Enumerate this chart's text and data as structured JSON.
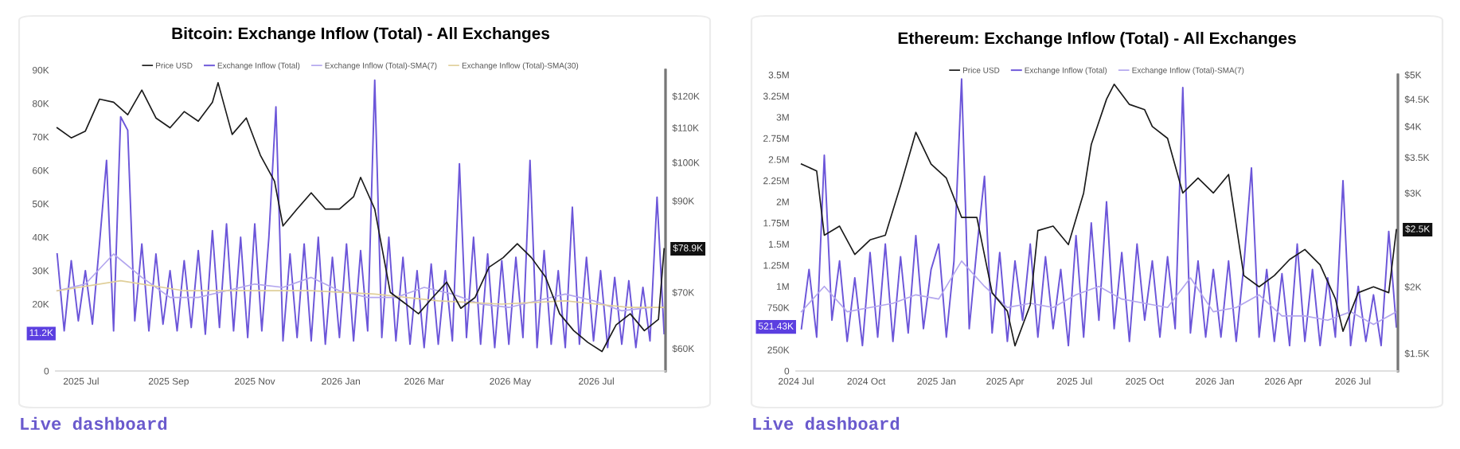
{
  "chart_data": [
    {
      "type": "line",
      "title": "Bitcoin: Exchange Inflow (Total) - All Exchanges",
      "legend": "top",
      "log": "y2",
      "xlim": [
        "2025-06-13",
        "2026-08-19"
      ],
      "xticks": [
        {
          "value": "2025-07-01",
          "label": "2025 Jul"
        },
        {
          "value": "2025-09-01",
          "label": "2025 Sep"
        },
        {
          "value": "2025-11-01",
          "label": "2025 Nov"
        },
        {
          "value": "2026-01-01",
          "label": "2026 Jan"
        },
        {
          "value": "2026-03-01",
          "label": "2026 Mar"
        },
        {
          "value": "2026-05-01",
          "label": "2026 May"
        },
        {
          "value": "2026-07-01",
          "label": "2026 Jul"
        }
      ],
      "ylim": [
        0,
        90000
      ],
      "yticks": [
        0,
        {
          "value": 20000,
          "label": "20K"
        },
        {
          "value": 30000,
          "label": "30K"
        },
        {
          "value": 40000,
          "label": "40K"
        },
        {
          "value": 50000,
          "label": "50K"
        },
        {
          "value": 60000,
          "label": "60K"
        },
        {
          "value": 70000,
          "label": "70K"
        },
        {
          "value": 80000,
          "label": "80K"
        },
        {
          "value": 90000,
          "label": "90K"
        }
      ],
      "y2lim": [
        56400,
        128900
      ],
      "y2ticks": [
        {
          "value": 60000,
          "label": "$60K"
        },
        {
          "value": 70000,
          "label": "$70K"
        },
        {
          "value": 90000,
          "label": "$90K"
        },
        {
          "value": 100000,
          "label": "$100K"
        },
        {
          "value": 110000,
          "label": "$110K"
        },
        {
          "value": 120000,
          "label": "$120K"
        }
      ],
      "series": [
        {
          "name": "Exchange Inflow (Total)",
          "color": "#6c56d9",
          "axis": "y",
          "x": [
            "2025-06-14",
            "2025-06-19",
            "2025-06-24",
            "2025-06-29",
            "2025-07-04",
            "2025-07-09",
            "2025-07-14",
            "2025-07-19",
            "2025-07-24",
            "2025-07-29",
            "2025-08-03",
            "2025-08-08",
            "2025-08-13",
            "2025-08-18",
            "2025-08-23",
            "2025-08-28",
            "2025-09-02",
            "2025-09-07",
            "2025-09-12",
            "2025-09-17",
            "2025-09-22",
            "2025-09-27",
            "2025-10-02",
            "2025-10-07",
            "2025-10-12",
            "2025-10-17",
            "2025-10-22",
            "2025-10-27",
            "2025-11-01",
            "2025-11-06",
            "2025-11-11",
            "2025-11-16",
            "2025-11-21",
            "2025-11-26",
            "2025-12-01",
            "2025-12-06",
            "2025-12-11",
            "2025-12-16",
            "2025-12-21",
            "2025-12-26",
            "2025-12-31",
            "2026-01-05",
            "2026-01-10",
            "2026-01-15",
            "2026-01-20",
            "2026-01-25",
            "2026-01-30",
            "2026-02-04",
            "2026-02-09",
            "2026-02-14",
            "2026-02-19",
            "2026-02-24",
            "2026-03-01",
            "2026-03-06",
            "2026-03-11",
            "2026-03-16",
            "2026-03-21",
            "2026-03-26",
            "2026-03-31",
            "2026-04-05",
            "2026-04-10",
            "2026-04-15",
            "2026-04-20",
            "2026-04-25",
            "2026-04-30",
            "2026-05-05",
            "2026-05-10",
            "2026-05-15",
            "2026-05-20",
            "2026-05-25",
            "2026-05-30",
            "2026-06-04",
            "2026-06-09",
            "2026-06-14",
            "2026-06-19",
            "2026-06-24",
            "2026-06-29",
            "2026-07-04",
            "2026-07-09",
            "2026-07-14",
            "2026-07-19",
            "2026-07-24",
            "2026-07-29",
            "2026-08-03",
            "2026-08-08",
            "2026-08-13",
            "2026-08-18"
          ],
          "values": [
            35000,
            12000,
            33000,
            15000,
            30000,
            14000,
            38000,
            63000,
            12000,
            76000,
            72000,
            15000,
            38000,
            12000,
            35000,
            14000,
            30000,
            12000,
            33000,
            13000,
            36000,
            11000,
            42000,
            13000,
            44000,
            12000,
            40000,
            10000,
            44000,
            12000,
            40000,
            79000,
            9000,
            35000,
            10000,
            38000,
            9000,
            40000,
            8000,
            34000,
            10000,
            38000,
            9000,
            36000,
            12000,
            87000,
            10000,
            40000,
            9000,
            34000,
            8000,
            30000,
            7000,
            32000,
            8000,
            30000,
            9000,
            62000,
            10000,
            40000,
            8000,
            35000,
            7000,
            33000,
            8000,
            34000,
            10000,
            63000,
            7000,
            36000,
            8000,
            30000,
            7000,
            49000,
            8000,
            34000,
            9000,
            30000,
            7000,
            28000,
            8000,
            27000,
            7000,
            25000,
            9000,
            52000,
            11200
          ]
        },
        {
          "name": "Exchange Inflow (Total)-SMA(7)",
          "color": "#b3a6ee",
          "axis": "y",
          "x": [
            "2025-06-14",
            "2025-07-04",
            "2025-07-24",
            "2025-08-13",
            "2025-09-02",
            "2025-09-22",
            "2025-10-12",
            "2025-11-01",
            "2025-11-21",
            "2025-12-11",
            "2025-12-31",
            "2026-01-20",
            "2026-02-09",
            "2026-03-01",
            "2026-03-21",
            "2026-04-10",
            "2026-04-30",
            "2026-05-20",
            "2026-06-09",
            "2026-06-29",
            "2026-07-19",
            "2026-08-08"
          ],
          "values": [
            24000,
            26000,
            35000,
            28000,
            22000,
            22000,
            24000,
            26000,
            25000,
            28000,
            24000,
            22000,
            22000,
            25000,
            23000,
            20000,
            19000,
            21000,
            23000,
            21000,
            18000,
            19000
          ]
        },
        {
          "name": "Exchange Inflow (Total)-SMA(30)",
          "color": "#e0cf9a",
          "axis": "y",
          "x": [
            "2025-06-14",
            "2025-07-29",
            "2025-09-12",
            "2025-10-27",
            "2025-12-11",
            "2026-01-25",
            "2026-03-11",
            "2026-04-25",
            "2026-06-09",
            "2026-07-24",
            "2026-08-18"
          ],
          "values": [
            24000,
            27000,
            24000,
            24000,
            24000,
            23000,
            21000,
            20000,
            21000,
            19000,
            19000
          ]
        },
        {
          "name": "Price USD",
          "color": "#1a1a1a",
          "axis": "y2",
          "x": [
            "2025-06-14",
            "2025-06-24",
            "2025-07-04",
            "2025-07-14",
            "2025-07-24",
            "2025-08-03",
            "2025-08-13",
            "2025-08-23",
            "2025-09-02",
            "2025-09-12",
            "2025-09-22",
            "2025-10-02",
            "2025-10-06",
            "2025-10-16",
            "2025-10-26",
            "2025-11-05",
            "2025-11-15",
            "2025-11-21",
            "2025-12-01",
            "2025-12-11",
            "2025-12-21",
            "2025-12-31",
            "2026-01-10",
            "2026-01-15",
            "2026-01-25",
            "2026-02-05",
            "2026-02-15",
            "2026-02-25",
            "2026-03-07",
            "2026-03-17",
            "2026-03-27",
            "2026-04-06",
            "2026-04-16",
            "2026-04-26",
            "2026-05-06",
            "2026-05-16",
            "2026-05-26",
            "2026-06-05",
            "2026-06-15",
            "2026-06-25",
            "2026-07-05",
            "2026-07-15",
            "2026-07-25",
            "2026-08-04",
            "2026-08-14",
            "2026-08-18"
          ],
          "values": [
            110000,
            107000,
            109000,
            119000,
            118000,
            114000,
            122000,
            113000,
            110000,
            115000,
            112000,
            118000,
            124500,
            108000,
            113000,
            102000,
            95000,
            84000,
            88000,
            92000,
            88000,
            88000,
            91000,
            96000,
            88000,
            70000,
            68000,
            66000,
            69000,
            72000,
            67000,
            69000,
            75000,
            77000,
            80000,
            77000,
            73000,
            66000,
            63000,
            61000,
            59500,
            64000,
            66000,
            63000,
            65000,
            78900
          ]
        }
      ],
      "annotations": [
        "11.2K",
        "$78.9K",
        "Live dashboard"
      ]
    },
    {
      "type": "line",
      "title": "Ethereum: Exchange Inflow (Total) - All Exchanges",
      "legend": "top",
      "log": "y2",
      "xlim": [
        "2024-07-01",
        "2026-08-29"
      ],
      "xticks": [
        {
          "value": "2024-07-01",
          "label": "2024 Jul"
        },
        {
          "value": "2024-10-01",
          "label": "2024 Oct"
        },
        {
          "value": "2025-01-01",
          "label": "2025 Jan"
        },
        {
          "value": "2025-04-01",
          "label": "2025 Apr"
        },
        {
          "value": "2025-07-01",
          "label": "2025 Jul"
        },
        {
          "value": "2025-10-01",
          "label": "2025 Oct"
        },
        {
          "value": "2026-01-01",
          "label": "2026 Jan"
        },
        {
          "value": "2026-04-01",
          "label": "2026 Apr"
        },
        {
          "value": "2026-07-01",
          "label": "2026 Jul"
        }
      ],
      "ylim": [
        0,
        3500000
      ],
      "yticks": [
        0,
        {
          "value": 250000,
          "label": "250K"
        },
        {
          "value": 750000,
          "label": "750K"
        },
        {
          "value": 1000000,
          "label": "1M"
        },
        {
          "value": 1250000,
          "label": "1.25M"
        },
        {
          "value": 1500000,
          "label": "1.5M"
        },
        {
          "value": 1750000,
          "label": "1.75M"
        },
        {
          "value": 2000000,
          "label": "2M"
        },
        {
          "value": 2250000,
          "label": "2.25M"
        },
        {
          "value": 2500000,
          "label": "2.5M"
        },
        {
          "value": 2750000,
          "label": "2.75M"
        },
        {
          "value": 3000000,
          "label": "3M"
        },
        {
          "value": 3250000,
          "label": "3.25M"
        },
        {
          "value": 3500000,
          "label": "3.5M"
        }
      ],
      "y2lim": [
        1390,
        5000
      ],
      "y2ticks": [
        {
          "value": 1500,
          "label": "$1.5K"
        },
        {
          "value": 2000,
          "label": "$2K"
        },
        {
          "value": 3000,
          "label": "$3K"
        },
        {
          "value": 3500,
          "label": "$3.5K"
        },
        {
          "value": 4000,
          "label": "$4K"
        },
        {
          "value": 4500,
          "label": "$4.5K"
        },
        {
          "value": 5000,
          "label": "$5K"
        }
      ],
      "series": [
        {
          "name": "Exchange Inflow (Total)",
          "color": "#6c56d9",
          "axis": "y",
          "x": [
            "2024-07-08",
            "2024-07-18",
            "2024-07-28",
            "2024-08-07",
            "2024-08-17",
            "2024-08-27",
            "2024-09-06",
            "2024-09-16",
            "2024-09-26",
            "2024-10-06",
            "2024-10-16",
            "2024-10-26",
            "2024-11-05",
            "2024-11-15",
            "2024-11-25",
            "2024-12-05",
            "2024-12-15",
            "2024-12-25",
            "2025-01-04",
            "2025-01-14",
            "2025-01-24",
            "2025-02-03",
            "2025-02-13",
            "2025-02-23",
            "2025-03-05",
            "2025-03-15",
            "2025-03-25",
            "2025-04-04",
            "2025-04-14",
            "2025-04-24",
            "2025-05-04",
            "2025-05-14",
            "2025-05-24",
            "2025-06-03",
            "2025-06-13",
            "2025-06-23",
            "2025-07-03",
            "2025-07-13",
            "2025-07-23",
            "2025-08-02",
            "2025-08-12",
            "2025-08-22",
            "2025-09-01",
            "2025-09-11",
            "2025-09-21",
            "2025-10-01",
            "2025-10-11",
            "2025-10-21",
            "2025-10-31",
            "2025-11-10",
            "2025-11-20",
            "2025-11-30",
            "2025-12-10",
            "2025-12-20",
            "2025-12-30",
            "2026-01-09",
            "2026-01-19",
            "2026-01-29",
            "2026-02-08",
            "2026-02-18",
            "2026-02-28",
            "2026-03-10",
            "2026-03-20",
            "2026-03-30",
            "2026-04-09",
            "2026-04-19",
            "2026-04-29",
            "2026-05-09",
            "2026-05-19",
            "2026-05-29",
            "2026-06-08",
            "2026-06-18",
            "2026-06-28",
            "2026-07-08",
            "2026-07-18",
            "2026-07-28",
            "2026-08-07",
            "2026-08-17",
            "2026-08-27"
          ],
          "values": [
            500000,
            1200000,
            400000,
            2550000,
            600000,
            1300000,
            350000,
            1100000,
            300000,
            1400000,
            400000,
            1500000,
            350000,
            1350000,
            450000,
            1600000,
            500000,
            1200000,
            1500000,
            400000,
            1300000,
            3450000,
            500000,
            1450000,
            2300000,
            450000,
            1400000,
            350000,
            1300000,
            600000,
            1500000,
            400000,
            1350000,
            500000,
            1200000,
            300000,
            1600000,
            400000,
            1750000,
            600000,
            2000000,
            500000,
            1400000,
            350000,
            1500000,
            600000,
            1300000,
            400000,
            1350000,
            500000,
            3350000,
            450000,
            1300000,
            400000,
            1200000,
            400000,
            1300000,
            350000,
            1250000,
            2400000,
            400000,
            1200000,
            350000,
            1150000,
            300000,
            1500000,
            350000,
            1200000,
            300000,
            1100000,
            400000,
            2250000,
            300000,
            1000000,
            350000,
            900000,
            300000,
            1650000,
            521430
          ]
        },
        {
          "name": "Exchange Inflow (Total)-SMA(7)",
          "color": "#b3a6ee",
          "axis": "y",
          "x": [
            "2024-07-08",
            "2024-08-07",
            "2024-09-06",
            "2024-10-06",
            "2024-11-05",
            "2024-12-05",
            "2025-01-04",
            "2025-02-03",
            "2025-03-05",
            "2025-04-04",
            "2025-05-04",
            "2025-06-03",
            "2025-07-03",
            "2025-08-02",
            "2025-09-01",
            "2025-10-01",
            "2025-10-31",
            "2025-11-30",
            "2025-12-30",
            "2026-01-29",
            "2026-02-28",
            "2026-03-30",
            "2026-04-29",
            "2026-05-29",
            "2026-06-28",
            "2026-07-28",
            "2026-08-27"
          ],
          "values": [
            700000,
            1000000,
            700000,
            750000,
            800000,
            900000,
            850000,
            1300000,
            1000000,
            750000,
            800000,
            750000,
            900000,
            1000000,
            850000,
            800000,
            750000,
            1100000,
            700000,
            750000,
            900000,
            650000,
            650000,
            600000,
            700000,
            550000,
            700000
          ]
        },
        {
          "name": "Price USD",
          "color": "#1a1a1a",
          "axis": "y2",
          "x": [
            "2024-07-08",
            "2024-07-28",
            "2024-08-07",
            "2024-08-27",
            "2024-09-16",
            "2024-10-06",
            "2024-10-26",
            "2024-11-15",
            "2024-12-05",
            "2024-12-25",
            "2025-01-14",
            "2025-02-03",
            "2025-02-23",
            "2025-03-15",
            "2025-04-04",
            "2025-04-14",
            "2025-05-04",
            "2025-05-14",
            "2025-06-03",
            "2025-06-23",
            "2025-07-13",
            "2025-07-23",
            "2025-08-12",
            "2025-08-22",
            "2025-09-11",
            "2025-10-01",
            "2025-10-11",
            "2025-10-31",
            "2025-11-20",
            "2025-12-10",
            "2025-12-30",
            "2026-01-19",
            "2026-02-08",
            "2026-02-28",
            "2026-03-20",
            "2026-04-09",
            "2026-04-29",
            "2026-05-19",
            "2026-06-08",
            "2026-06-18",
            "2026-07-08",
            "2026-07-28",
            "2026-08-17",
            "2026-08-27"
          ],
          "values": [
            3400,
            3300,
            2500,
            2600,
            2300,
            2450,
            2500,
            3100,
            3900,
            3400,
            3200,
            2700,
            2700,
            1950,
            1800,
            1550,
            1850,
            2550,
            2600,
            2400,
            3000,
            3700,
            4500,
            4800,
            4400,
            4300,
            4000,
            3800,
            3000,
            3200,
            3000,
            3250,
            2100,
            2000,
            2100,
            2250,
            2350,
            2200,
            1900,
            1650,
            1950,
            2000,
            1950,
            2560
          ]
        }
      ],
      "annotations": [
        "521.43K",
        "$2.5K",
        "Live dashboard"
      ]
    }
  ]
}
